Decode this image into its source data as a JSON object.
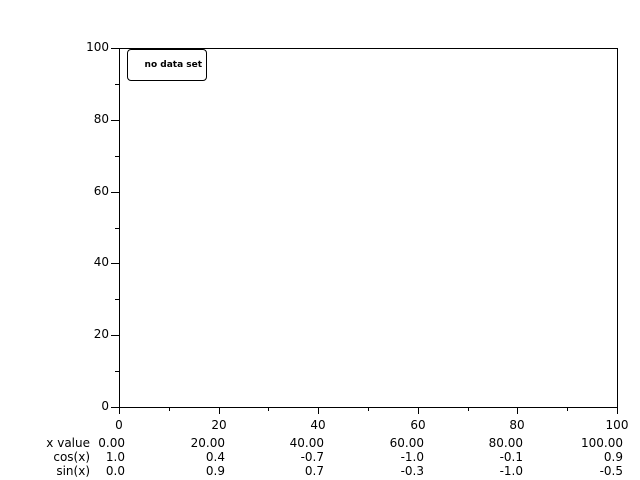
{
  "window": {
    "background": "#ffffff",
    "ink": "#000000"
  },
  "legend": {
    "label": "no data set"
  },
  "chart_data": {
    "type": "table",
    "title": "",
    "grid": false,
    "legend_position": "top-left",
    "legend_entries": [
      "no data set"
    ],
    "series": [],
    "x_axis": {
      "label": "",
      "range": [
        0,
        100
      ],
      "major_ticks": [
        0,
        20,
        40,
        60,
        80,
        100
      ],
      "minor_ticks": [
        10,
        30,
        50,
        70,
        90
      ],
      "tick_labels": [
        "0",
        "20",
        "40",
        "60",
        "80",
        "100"
      ]
    },
    "y_axis": {
      "label": "",
      "range": [
        0,
        100
      ],
      "major_ticks": [
        0,
        20,
        40,
        60,
        80,
        100
      ],
      "minor_ticks": [
        10,
        30,
        50,
        70,
        90
      ],
      "tick_labels": [
        "0",
        "20",
        "40",
        "60",
        "80",
        "100"
      ]
    },
    "table_rows": [
      {
        "label": "x value",
        "values": [
          "0.00",
          "20.00",
          "40.00",
          "60.00",
          "80.00",
          "100.00"
        ]
      },
      {
        "label": "cos(x)",
        "values": [
          "1.0",
          "0.4",
          "-0.7",
          "-1.0",
          "-0.1",
          "0.9"
        ]
      },
      {
        "label": "sin(x)",
        "values": [
          "0.0",
          "0.9",
          "0.7",
          "-0.3",
          "-1.0",
          "-0.5"
        ]
      }
    ]
  }
}
